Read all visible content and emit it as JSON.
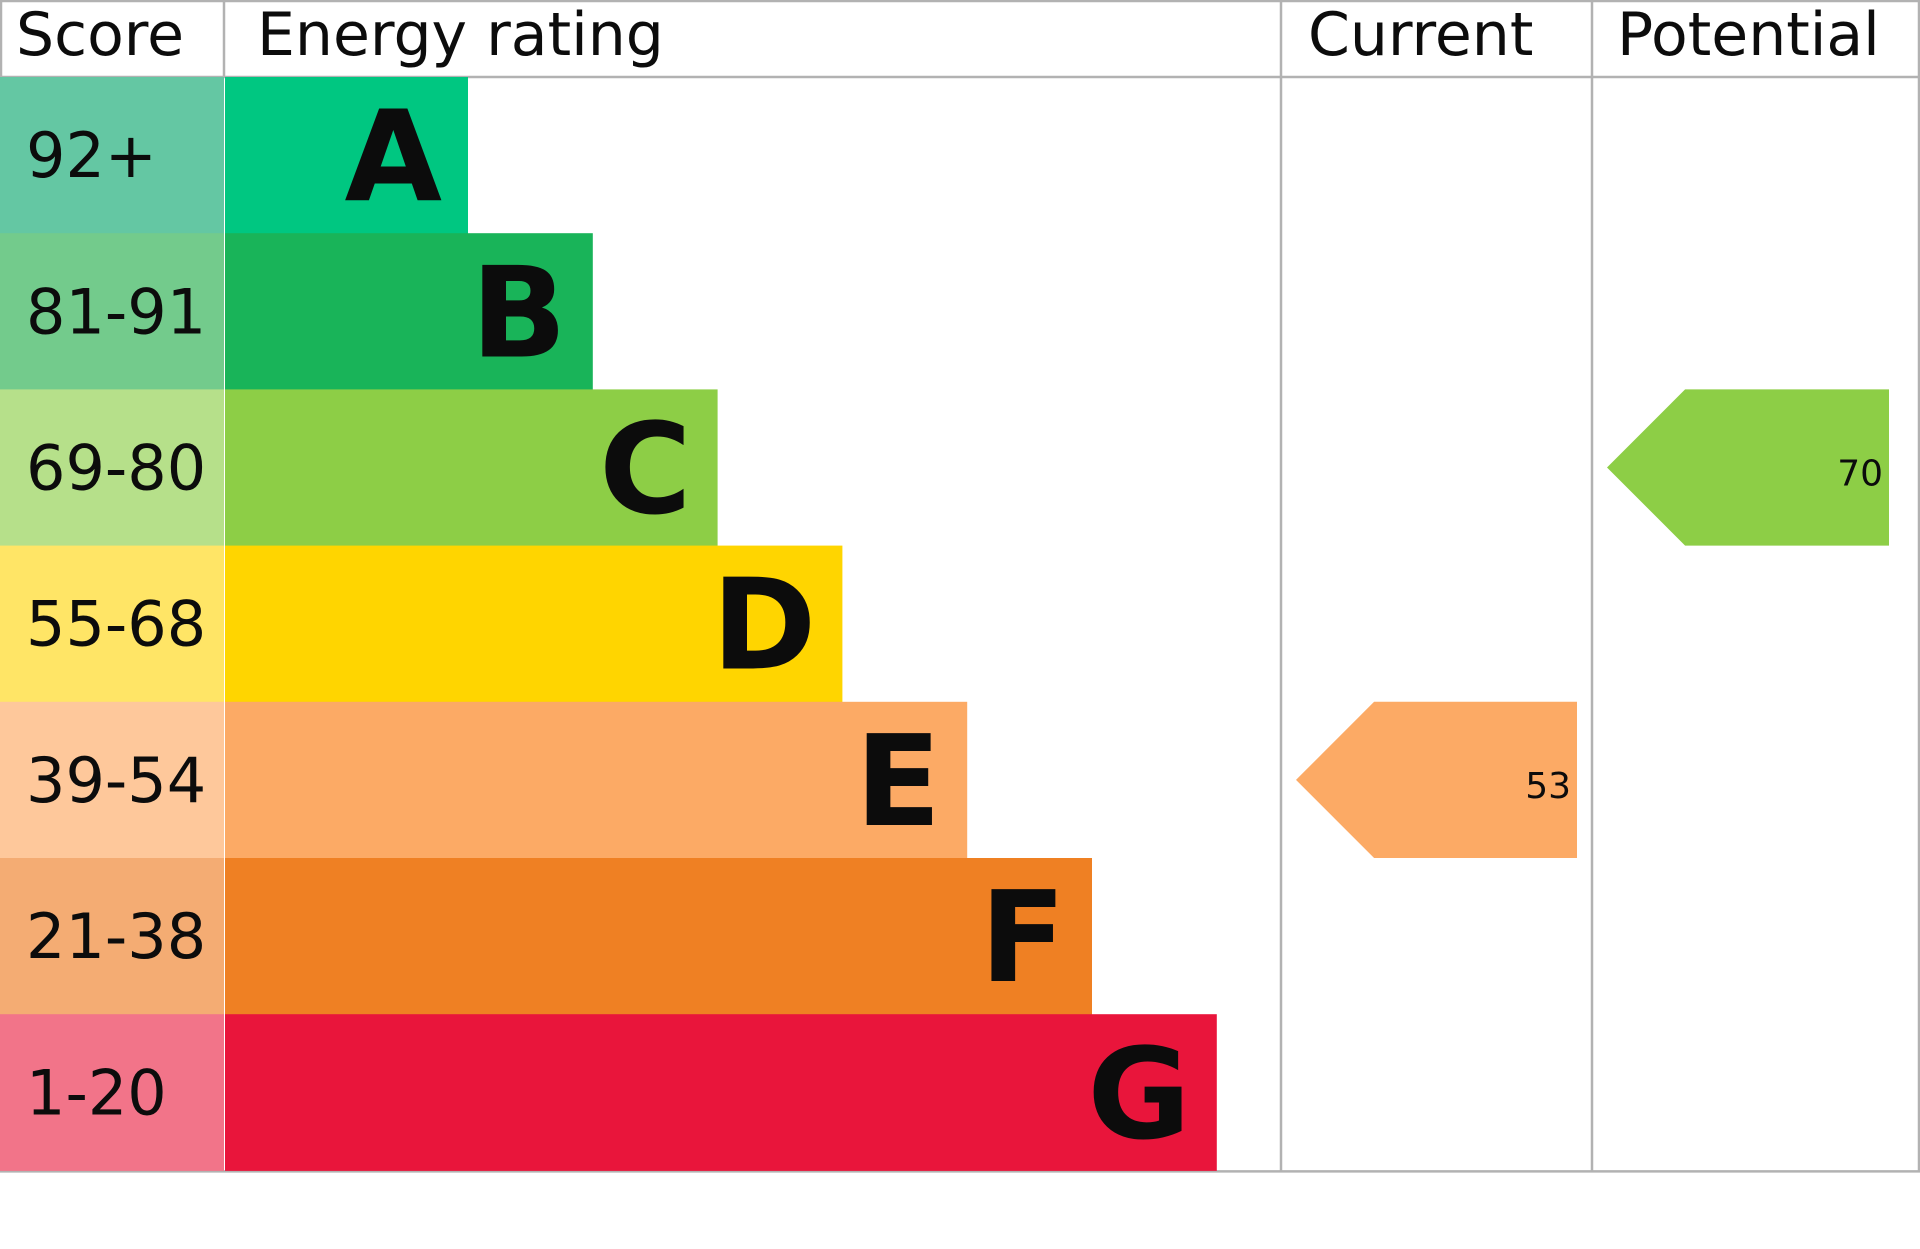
{
  "chart_data": {
    "type": "bar",
    "headers": {
      "score": "Score",
      "rating": "Energy rating",
      "current": "Current",
      "potential": "Potential"
    },
    "bands": [
      {
        "letter": "A",
        "range": "92+",
        "color": "#00c781",
        "score_color": "#64c7a3"
      },
      {
        "letter": "B",
        "range": "81-91",
        "color": "#19b459",
        "score_color": "#73cb8c"
      },
      {
        "letter": "C",
        "range": "69-80",
        "color": "#8dce46",
        "score_color": "#b6e08a"
      },
      {
        "letter": "D",
        "range": "55-68",
        "color": "#ffd500",
        "score_color": "#ffe566"
      },
      {
        "letter": "E",
        "range": "39-54",
        "color": "#fcaa65",
        "score_color": "#fec89b"
      },
      {
        "letter": "F",
        "range": "21-38",
        "color": "#ef8023",
        "score_color": "#f4ac73"
      },
      {
        "letter": "G",
        "range": "1-20",
        "color": "#e9153b",
        "score_color": "#f27489"
      }
    ],
    "current": {
      "value": 53,
      "band": "E",
      "label": "53"
    },
    "potential": {
      "value": 70,
      "band": "C",
      "label": "70"
    },
    "grid_color": "#b2b2b2"
  }
}
